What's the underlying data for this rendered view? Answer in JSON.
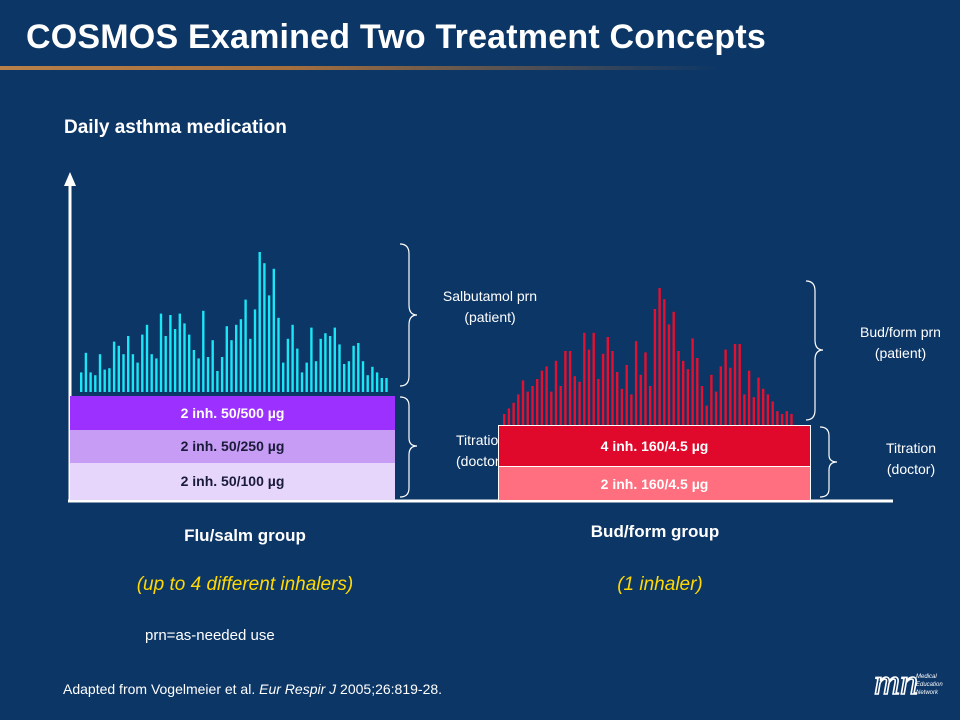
{
  "title": "COSMOS Examined Two Treatment Concepts",
  "subtitle": "Daily asthma medication",
  "flu_salm": {
    "boxes": [
      "2 inh. 50/500 µg",
      "2 inh. 50/250 µg",
      "2 inh. 50/100 µg"
    ],
    "salbutamol_label": [
      "Salbutamol prn",
      "(patient)"
    ],
    "titration_label": [
      "Titration",
      "(doctor)"
    ],
    "group_label": "Flu/salm group",
    "note": "(up to 4 different inhalers)"
  },
  "bud_form": {
    "boxes": [
      "4 inh. 160/4.5 µg",
      "2 inh. 160/4.5 µg"
    ],
    "prn_label": [
      "Bud/form prn",
      "(patient)"
    ],
    "titration_label": [
      "Titration",
      "(doctor)"
    ],
    "group_label": "Bud/form group",
    "note": "(1 inhaler)"
  },
  "footnote": "prn=as-needed use",
  "citation": {
    "prefix": "Adapted from Vogelmeier et al.",
    "journal": "Eur Respir J",
    "suffix": " 2005;26:819-28."
  },
  "logo": {
    "letters": "mn",
    "text": [
      "Medical",
      "Education",
      "Network"
    ]
  },
  "colors": {
    "background": "#0c3666",
    "cyan_bars": "#1be6f5",
    "red_bars": "#e5102f",
    "box_500": "#9b30ff",
    "box_250": "#c79cf5",
    "box_100": "#e7d6fb",
    "box_bud_4": "#e0092b",
    "box_bud_2": "#ff6f7f",
    "note_yellow": "#ffd900"
  },
  "bar_heights": {
    "flu_salm_rel": [
      0.14,
      0.28,
      0.14,
      0.12,
      0.27,
      0.16,
      0.17,
      0.36,
      0.33,
      0.27,
      0.4,
      0.27,
      0.21,
      0.41,
      0.48,
      0.27,
      0.24,
      0.56,
      0.4,
      0.55,
      0.45,
      0.56,
      0.49,
      0.41,
      0.3,
      0.24,
      0.58,
      0.25,
      0.37,
      0.15,
      0.25,
      0.47,
      0.37,
      0.48,
      0.52,
      0.66,
      0.38,
      0.59,
      1.0,
      0.92,
      0.69,
      0.88,
      0.53,
      0.21,
      0.38,
      0.48,
      0.31,
      0.14,
      0.21,
      0.46,
      0.22,
      0.38,
      0.42,
      0.4,
      0.46,
      0.34,
      0.2,
      0.22,
      0.33,
      0.35,
      0.22,
      0.12,
      0.18,
      0.14,
      0.1,
      0.1
    ],
    "bud_form_rel": [
      0.1,
      0.14,
      0.18,
      0.24,
      0.34,
      0.26,
      0.3,
      0.35,
      0.41,
      0.44,
      0.26,
      0.48,
      0.3,
      0.55,
      0.55,
      0.37,
      0.33,
      0.68,
      0.56,
      0.68,
      0.35,
      0.53,
      0.65,
      0.55,
      0.4,
      0.28,
      0.45,
      0.24,
      0.62,
      0.38,
      0.54,
      0.3,
      0.85,
      1.0,
      0.92,
      0.74,
      0.83,
      0.55,
      0.48,
      0.42,
      0.64,
      0.5,
      0.3,
      0.16,
      0.38,
      0.26,
      0.44,
      0.56,
      0.43,
      0.6,
      0.6,
      0.24,
      0.41,
      0.22,
      0.36,
      0.28,
      0.24,
      0.19,
      0.12,
      0.1,
      0.12,
      0.1
    ]
  }
}
